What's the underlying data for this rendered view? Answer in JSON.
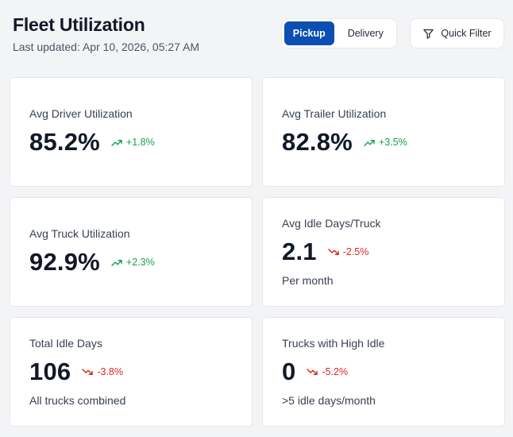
{
  "header": {
    "title": "Fleet Utilization",
    "last_updated": "Last updated: Apr 10, 2026, 05:27 AM"
  },
  "toggle": {
    "options": [
      "Pickup",
      "Delivery"
    ],
    "selected": "Pickup"
  },
  "filter": {
    "label": "Quick Filter",
    "icon": "funnel-icon"
  },
  "colors": {
    "accent": "#0b4fb3",
    "positive": "#16a34a",
    "negative": "#dc2626"
  },
  "cards": [
    {
      "label": "Avg Driver Utilization",
      "value": "85.2%",
      "change": "+1.8%",
      "direction": "up",
      "sub": ""
    },
    {
      "label": "Avg Trailer Utilization",
      "value": "82.8%",
      "change": "+3.5%",
      "direction": "up",
      "sub": ""
    },
    {
      "label": "Avg Truck Utilization",
      "value": "92.9%",
      "change": "+2.3%",
      "direction": "up",
      "sub": ""
    },
    {
      "label": "Avg Idle Days/Truck",
      "value": "2.1",
      "change": "-2.5%",
      "direction": "down",
      "sub": "Per month"
    },
    {
      "label": "Total Idle Days",
      "value": "106",
      "change": "-3.8%",
      "direction": "down",
      "sub": "All trucks combined"
    },
    {
      "label": "Trucks with High Idle",
      "value": "0",
      "change": "-5.2%",
      "direction": "down",
      "sub": ">5 idle days/month"
    }
  ]
}
